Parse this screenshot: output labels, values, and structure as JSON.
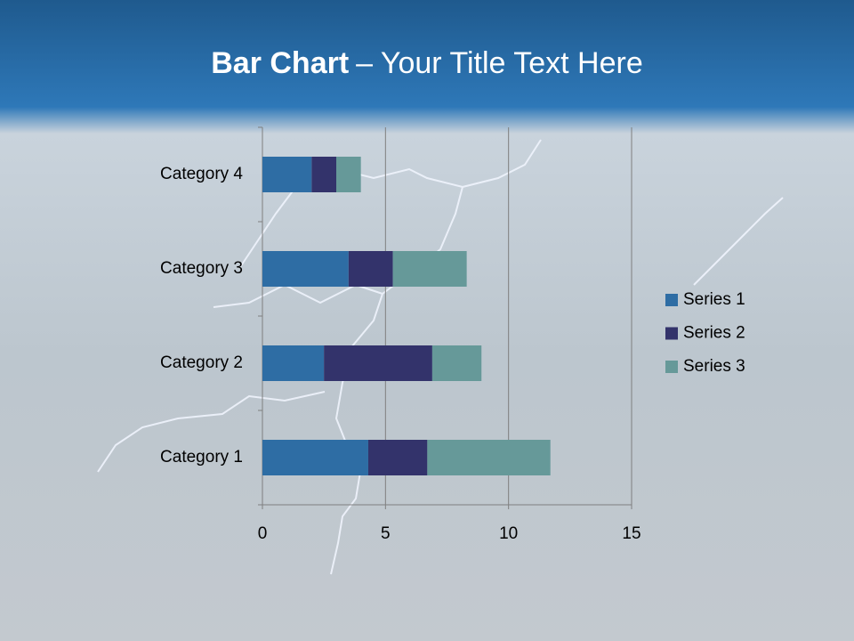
{
  "chart_data": {
    "type": "stacked-bar-horizontal",
    "title": [
      "Bar Chart",
      "– Your Title Text Here"
    ],
    "categories": [
      "Category 1",
      "Category 2",
      "Category 3",
      "Category 4"
    ],
    "series": [
      {
        "name": "Series 1",
        "color": "#2e6da4",
        "values": [
          4.3,
          2.5,
          3.5,
          2
        ]
      },
      {
        "name": "Series 2",
        "color": "#33336b",
        "values": [
          2.4,
          4.4,
          1.8,
          1
        ]
      },
      {
        "name": "Series 3",
        "color": "#669999",
        "values": [
          5,
          2,
          3,
          1
        ]
      }
    ],
    "xlim": [
      0,
      15
    ],
    "xticks": [
      0,
      5,
      10,
      15
    ],
    "grid": true,
    "legend": "right"
  }
}
